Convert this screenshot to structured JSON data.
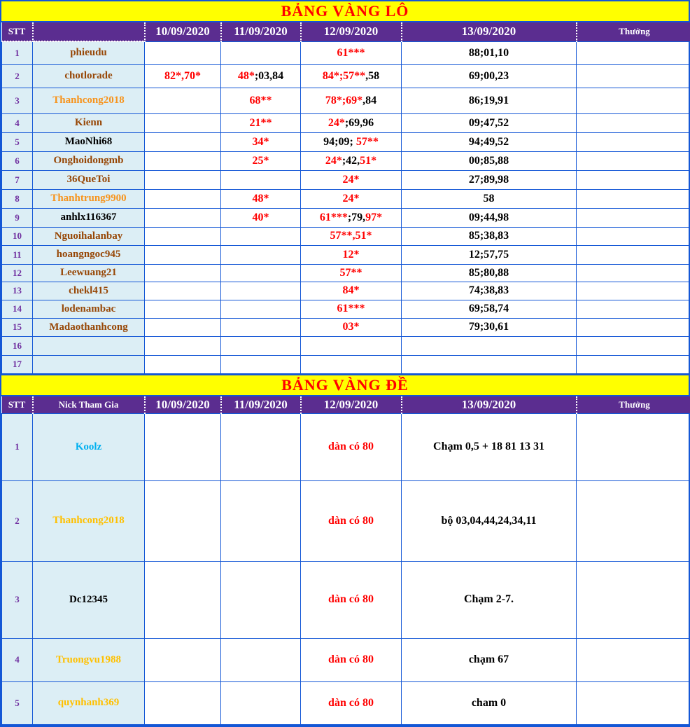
{
  "colors": {
    "grid_blue": "#1457d6",
    "header_purple": "#5b2d90",
    "pale_blue": "#dceef5",
    "title_yellow": "#ffff00",
    "title_red": "#ff0000",
    "text": {
      "red": "#ff0000",
      "black": "#000000",
      "brown": "#974706",
      "orange": "#f7941d",
      "gold": "#ffc000",
      "skyblue": "#00b0f0",
      "purple": "#7030a0"
    }
  },
  "tables": [
    {
      "title": "BẢNG VÀNG LÔ",
      "columns": [
        "STT",
        "",
        "10/09/2020",
        "11/09/2020",
        "12/09/2020",
        "13/09/2020",
        "Thưởng"
      ],
      "rows": [
        {
          "stt": "1",
          "nick": {
            "t": "phieudu",
            "c": "brown"
          },
          "cells": [
            [],
            [],
            [
              {
                "t": "61***",
                "c": "red"
              }
            ],
            [
              {
                "t": "88;01,10",
                "c": "black"
              }
            ]
          ],
          "thuong": ""
        },
        {
          "stt": "2",
          "nick": {
            "t": "chotlorade",
            "c": "brown"
          },
          "cells": [
            [
              {
                "t": "82*,70*",
                "c": "red"
              }
            ],
            [
              {
                "t": "48*",
                "c": "red"
              },
              {
                "t": ";03,84",
                "c": "black"
              }
            ],
            [
              {
                "t": "84*;57**",
                "c": "red"
              },
              {
                "t": ",58",
                "c": "black"
              }
            ],
            [
              {
                "t": "69;00,23",
                "c": "black"
              }
            ]
          ],
          "thuong": ""
        },
        {
          "stt": "3",
          "nick": {
            "t": "Thanhcong2018",
            "c": "orange"
          },
          "cells": [
            [],
            [
              {
                "t": "68**",
                "c": "red"
              }
            ],
            [
              {
                "t": "78*;69*",
                "c": "red"
              },
              {
                "t": ",84",
                "c": "black"
              }
            ],
            [
              {
                "t": "86;19,91",
                "c": "black"
              }
            ]
          ],
          "thuong": ""
        },
        {
          "stt": "4",
          "nick": {
            "t": "Kienn",
            "c": "brown"
          },
          "cells": [
            [],
            [
              {
                "t": "21**",
                "c": "red"
              }
            ],
            [
              {
                "t": "24*",
                "c": "red"
              },
              {
                "t": ";69,96",
                "c": "black"
              }
            ],
            [
              {
                "t": "09;47,52",
                "c": "black"
              }
            ]
          ],
          "thuong": ""
        },
        {
          "stt": "5",
          "nick": {
            "t": "MaoNhi68",
            "c": "black"
          },
          "cells": [
            [],
            [
              {
                "t": "34*",
                "c": "red"
              }
            ],
            [
              {
                "t": "94;09; ",
                "c": "black"
              },
              {
                "t": "57**",
                "c": "red"
              }
            ],
            [
              {
                "t": "94;49,52",
                "c": "black"
              }
            ]
          ],
          "thuong": ""
        },
        {
          "stt": "6",
          "nick": {
            "t": "Onghoidongmb",
            "c": "brown"
          },
          "cells": [
            [],
            [
              {
                "t": "25*",
                "c": "red"
              }
            ],
            [
              {
                "t": "24*",
                "c": "red"
              },
              {
                "t": ";42,",
                "c": "black"
              },
              {
                "t": "51*",
                "c": "red"
              }
            ],
            [
              {
                "t": "00;85,88",
                "c": "black"
              }
            ]
          ],
          "thuong": ""
        },
        {
          "stt": "7",
          "nick": {
            "t": "36QueToi",
            "c": "brown"
          },
          "cells": [
            [],
            [],
            [
              {
                "t": "24*",
                "c": "red"
              }
            ],
            [
              {
                "t": "27;89,98",
                "c": "black"
              }
            ]
          ],
          "thuong": ""
        },
        {
          "stt": "8",
          "nick": {
            "t": "Thanhtrung9900",
            "c": "orange"
          },
          "cells": [
            [],
            [
              {
                "t": "48*",
                "c": "red"
              }
            ],
            [
              {
                "t": "24*",
                "c": "red"
              }
            ],
            [
              {
                "t": "58",
                "c": "black"
              }
            ]
          ],
          "thuong": ""
        },
        {
          "stt": "9",
          "nick": {
            "t": "anhlx116367",
            "c": "black"
          },
          "cells": [
            [],
            [
              {
                "t": "40*",
                "c": "red"
              }
            ],
            [
              {
                "t": "61***",
                "c": "red"
              },
              {
                "t": ";79,",
                "c": "black"
              },
              {
                "t": "97*",
                "c": "red"
              }
            ],
            [
              {
                "t": "09;44,98",
                "c": "black"
              }
            ]
          ],
          "thuong": ""
        },
        {
          "stt": "10",
          "nick": {
            "t": "Nguoihalanbay",
            "c": "brown"
          },
          "cells": [
            [],
            [],
            [
              {
                "t": "57**,51*",
                "c": "red"
              }
            ],
            [
              {
                "t": "85;38,83",
                "c": "black"
              }
            ]
          ],
          "thuong": ""
        },
        {
          "stt": "11",
          "nick": {
            "t": "hoangngoc945",
            "c": "brown"
          },
          "cells": [
            [],
            [],
            [
              {
                "t": "12*",
                "c": "red"
              }
            ],
            [
              {
                "t": "12;57,75",
                "c": "black"
              }
            ]
          ],
          "thuong": ""
        },
        {
          "stt": "12",
          "nick": {
            "t": "Leewuang21",
            "c": "brown"
          },
          "cells": [
            [],
            [],
            [
              {
                "t": "57**",
                "c": "red"
              }
            ],
            [
              {
                "t": "85;80,88",
                "c": "black"
              }
            ]
          ],
          "thuong": ""
        },
        {
          "stt": "13",
          "nick": {
            "t": "chekl415",
            "c": "brown"
          },
          "cells": [
            [],
            [],
            [
              {
                "t": "84*",
                "c": "red"
              }
            ],
            [
              {
                "t": "74;38,83",
                "c": "black"
              }
            ]
          ],
          "thuong": ""
        },
        {
          "stt": "14",
          "nick": {
            "t": "lodenambac",
            "c": "brown"
          },
          "cells": [
            [],
            [],
            [
              {
                "t": "61***",
                "c": "red"
              }
            ],
            [
              {
                "t": "69;58,74",
                "c": "black"
              }
            ]
          ],
          "thuong": ""
        },
        {
          "stt": "15",
          "nick": {
            "t": "Madaothanhcong",
            "c": "brown"
          },
          "cells": [
            [],
            [],
            [
              {
                "t": "03*",
                "c": "red"
              }
            ],
            [
              {
                "t": "79;30,61",
                "c": "black"
              }
            ]
          ],
          "thuong": ""
        },
        {
          "stt": "16",
          "nick": {
            "t": "",
            "c": "black"
          },
          "cells": [
            [],
            [],
            [],
            []
          ],
          "thuong": ""
        },
        {
          "stt": "17",
          "nick": {
            "t": "",
            "c": "black"
          },
          "cells": [
            [],
            [],
            [],
            []
          ],
          "thuong": ""
        }
      ]
    },
    {
      "title": "BẢNG VÀNG ĐỀ",
      "columns": [
        "STT",
        "Nick Tham Gia",
        "10/09/2020",
        "11/09/2020",
        "12/09/2020",
        "13/09/2020",
        "Thưởng"
      ],
      "rows": [
        {
          "stt": "1",
          "nick": {
            "t": "Koolz",
            "c": "skyblue"
          },
          "cells": [
            [],
            [],
            [
              {
                "t": "dàn có 80",
                "c": "red"
              }
            ],
            [
              {
                "t": "Chạm 0,5 + 18 81 13 31",
                "c": "black"
              }
            ]
          ],
          "thuong": ""
        },
        {
          "stt": "2",
          "nick": {
            "t": "Thanhcong2018",
            "c": "gold"
          },
          "cells": [
            [],
            [],
            [
              {
                "t": "dàn có 80",
                "c": "red"
              }
            ],
            [
              {
                "t": "bộ 03,04,44,24,34,11",
                "c": "black"
              }
            ]
          ],
          "thuong": ""
        },
        {
          "stt": "3",
          "nick": {
            "t": "Dc12345",
            "c": "black"
          },
          "cells": [
            [],
            [],
            [
              {
                "t": "dàn có 80",
                "c": "red"
              }
            ],
            [
              {
                "t": "Chạm 2-7.",
                "c": "black"
              }
            ]
          ],
          "thuong": ""
        },
        {
          "stt": "4",
          "nick": {
            "t": "Truongvu1988",
            "c": "gold"
          },
          "cells": [
            [],
            [],
            [
              {
                "t": "dàn có 80",
                "c": "red"
              }
            ],
            [
              {
                "t": "chạm 67",
                "c": "black"
              }
            ]
          ],
          "thuong": ""
        },
        {
          "stt": "5",
          "nick": {
            "t": "quynhanh369",
            "c": "gold"
          },
          "cells": [
            [],
            [],
            [
              {
                "t": "dàn có 80",
                "c": "red"
              }
            ],
            [
              {
                "t": "cham 0",
                "c": "black"
              }
            ]
          ],
          "thuong": ""
        }
      ]
    }
  ]
}
